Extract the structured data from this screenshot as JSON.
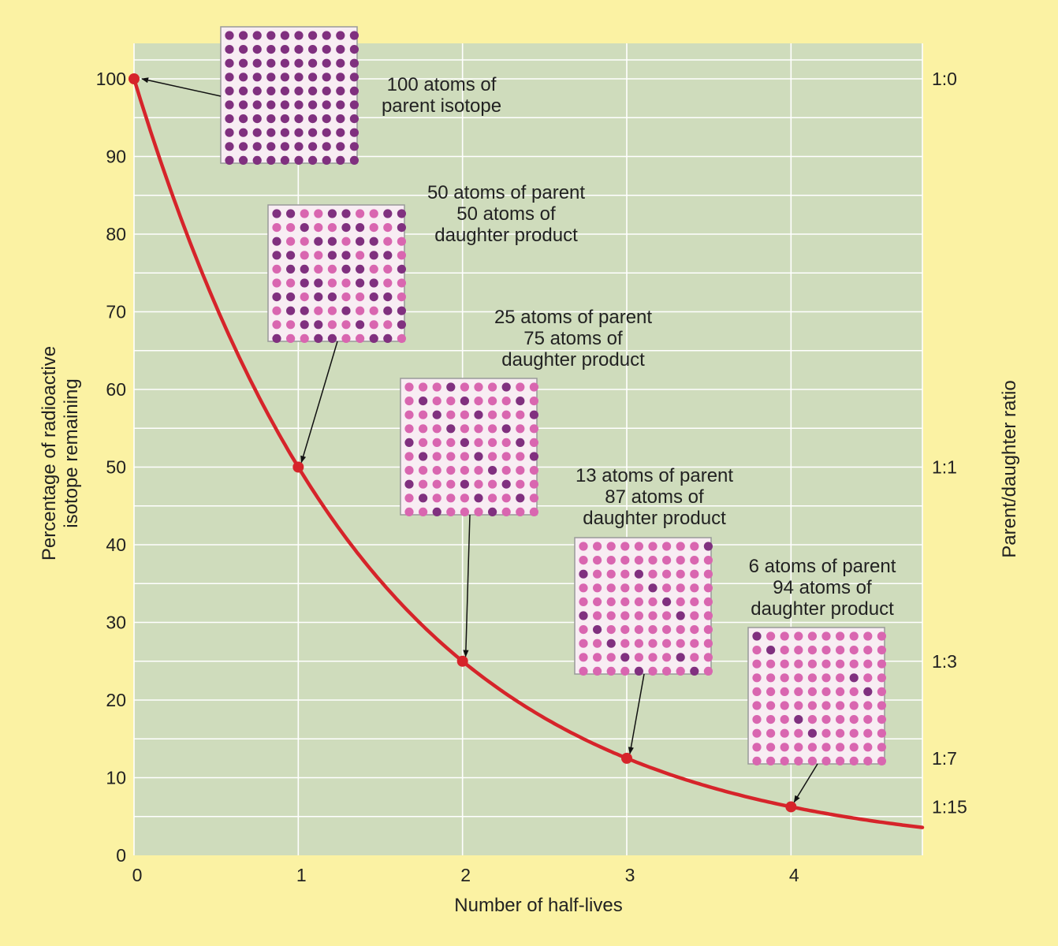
{
  "chart_data": {
    "type": "line",
    "title": "",
    "xlabel": "Number of half-lives",
    "ylabel_lines": [
      "Percentage of radioactive",
      "isotope remaining"
    ],
    "y2label": "Parent/daughter ratio",
    "xlim": [
      0,
      4.8
    ],
    "ylim": [
      0,
      100
    ],
    "x_ticks": [
      0,
      1,
      2,
      3,
      4
    ],
    "y_ticks": [
      0,
      10,
      20,
      30,
      40,
      50,
      60,
      70,
      80,
      90,
      100
    ],
    "grid": true,
    "colors": {
      "frame": "#fbf2a3",
      "plot_bg": "#cfdcbc",
      "grid": "#ffffff",
      "curve": "#d6242a",
      "parent_atom": "#80307f",
      "daughter_atom": "#d966b0"
    },
    "series": [
      {
        "name": "Percentage of radioactive isotope remaining",
        "function": "100 * 0.5^x",
        "x_max": 4.8
      }
    ],
    "points": [
      {
        "x": 0,
        "y": 100
      },
      {
        "x": 1,
        "y": 50
      },
      {
        "x": 2,
        "y": 25
      },
      {
        "x": 3,
        "y": 12.5
      },
      {
        "x": 4,
        "y": 6.25
      }
    ],
    "ratio_labels": [
      {
        "value": 100,
        "label": "1:0"
      },
      {
        "value": 50,
        "label": "1:1"
      },
      {
        "value": 25,
        "label": "1:3"
      },
      {
        "value": 12.5,
        "label": "1:7"
      },
      {
        "value": 6.25,
        "label": "1:15"
      }
    ],
    "annotations": [
      {
        "half_life": 0,
        "parent_atoms": 100,
        "text": [
          "100 atoms of",
          "parent isotope"
        ]
      },
      {
        "half_life": 1,
        "parent_atoms": 50,
        "text": [
          "50 atoms of parent",
          "50 atoms of",
          "daughter product"
        ]
      },
      {
        "half_life": 2,
        "parent_atoms": 25,
        "text": [
          "25 atoms of parent",
          "75 atoms of",
          "daughter product"
        ]
      },
      {
        "half_life": 3,
        "parent_atoms": 13,
        "text": [
          "13 atoms of parent",
          "87 atoms of",
          "daughter product"
        ]
      },
      {
        "half_life": 4,
        "parent_atoms": 6,
        "text": [
          "6 atoms of parent",
          "94 atoms of",
          "daughter product"
        ]
      }
    ]
  }
}
